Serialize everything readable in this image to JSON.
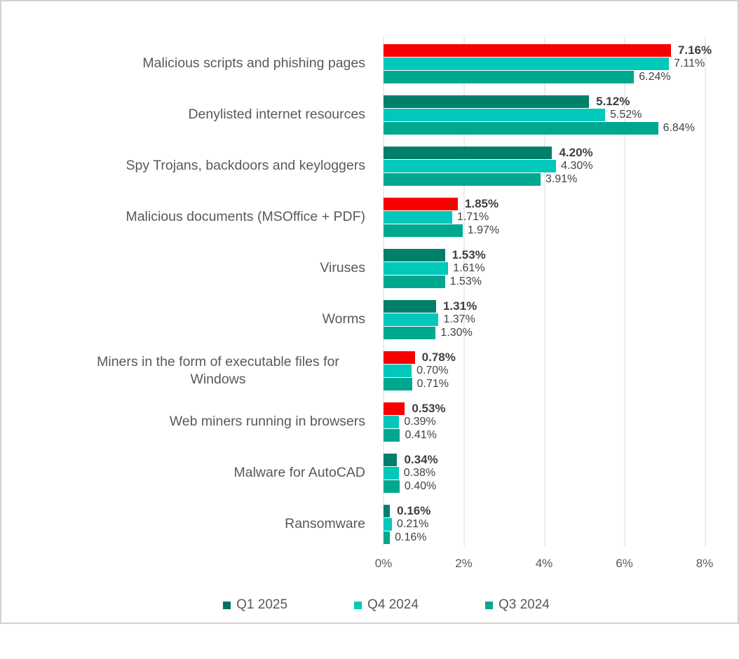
{
  "colors": {
    "q1_2025": "#00806B",
    "q1_increase_red": "#F80000",
    "q4_2024": "#00C9BC",
    "q3_2024": "#00A88F",
    "gridline": "#D9D9D9",
    "axis_text": "#595959",
    "value_text": "#3F3F3F"
  },
  "legend": {
    "items": [
      {
        "label": "Q1 2025",
        "color": "#00735C"
      },
      {
        "label": "Q4 2024",
        "color": "#00C9BC"
      },
      {
        "label": "Q3 2024",
        "color": "#00A88F"
      }
    ]
  },
  "chart_data": {
    "type": "bar",
    "orientation": "horizontal",
    "title": "",
    "xlabel": "",
    "ylabel": "",
    "xlim": [
      0,
      8
    ],
    "x_ticks": [
      "0%",
      "2%",
      "4%",
      "6%",
      "8%"
    ],
    "grid": true,
    "legend_position": "bottom",
    "series_names": [
      "Q1 2025",
      "Q4 2024",
      "Q3 2024"
    ],
    "note": "Q1 2025 bar drawn red when value increased versus Q4 2024",
    "rows": [
      {
        "category": "Malicious scripts and phishing pages",
        "values": [
          7.16,
          7.11,
          6.24
        ],
        "labels": [
          "7.16%",
          "7.11%",
          "6.24%"
        ],
        "q1_increase": true
      },
      {
        "category": "Denylisted internet resources",
        "values": [
          5.12,
          5.52,
          6.84
        ],
        "labels": [
          "5.12%",
          "5.52%",
          "6.84%"
        ],
        "q1_increase": false
      },
      {
        "category": "Spy Trojans, backdoors and keyloggers",
        "values": [
          4.2,
          4.3,
          3.91
        ],
        "labels": [
          "4.20%",
          "4.30%",
          "3.91%"
        ],
        "q1_increase": false
      },
      {
        "category": "Malicious documents (MSOffice + PDF)",
        "values": [
          1.85,
          1.71,
          1.97
        ],
        "labels": [
          "1.85%",
          "1.71%",
          "1.97%"
        ],
        "q1_increase": true
      },
      {
        "category": "Viruses",
        "values": [
          1.53,
          1.61,
          1.53
        ],
        "labels": [
          "1.53%",
          "1.61%",
          "1.53%"
        ],
        "q1_increase": false
      },
      {
        "category": "Worms",
        "values": [
          1.31,
          1.37,
          1.3
        ],
        "labels": [
          "1.31%",
          "1.37%",
          "1.30%"
        ],
        "q1_increase": false
      },
      {
        "category": "Miners in the form of executable files for Windows",
        "values": [
          0.78,
          0.7,
          0.71
        ],
        "labels": [
          "0.78%",
          "0.70%",
          "0.71%"
        ],
        "q1_increase": true
      },
      {
        "category": "Web miners running in browsers",
        "values": [
          0.53,
          0.39,
          0.41
        ],
        "labels": [
          "0.53%",
          "0.39%",
          "0.41%"
        ],
        "q1_increase": true
      },
      {
        "category": "Malware for AutoCAD",
        "values": [
          0.34,
          0.38,
          0.4
        ],
        "labels": [
          "0.34%",
          "0.38%",
          "0.40%"
        ],
        "q1_increase": false
      },
      {
        "category": "Ransomware",
        "values": [
          0.16,
          0.21,
          0.16
        ],
        "labels": [
          "0.16%",
          "0.21%",
          "0.16%"
        ],
        "q1_increase": false
      }
    ]
  }
}
